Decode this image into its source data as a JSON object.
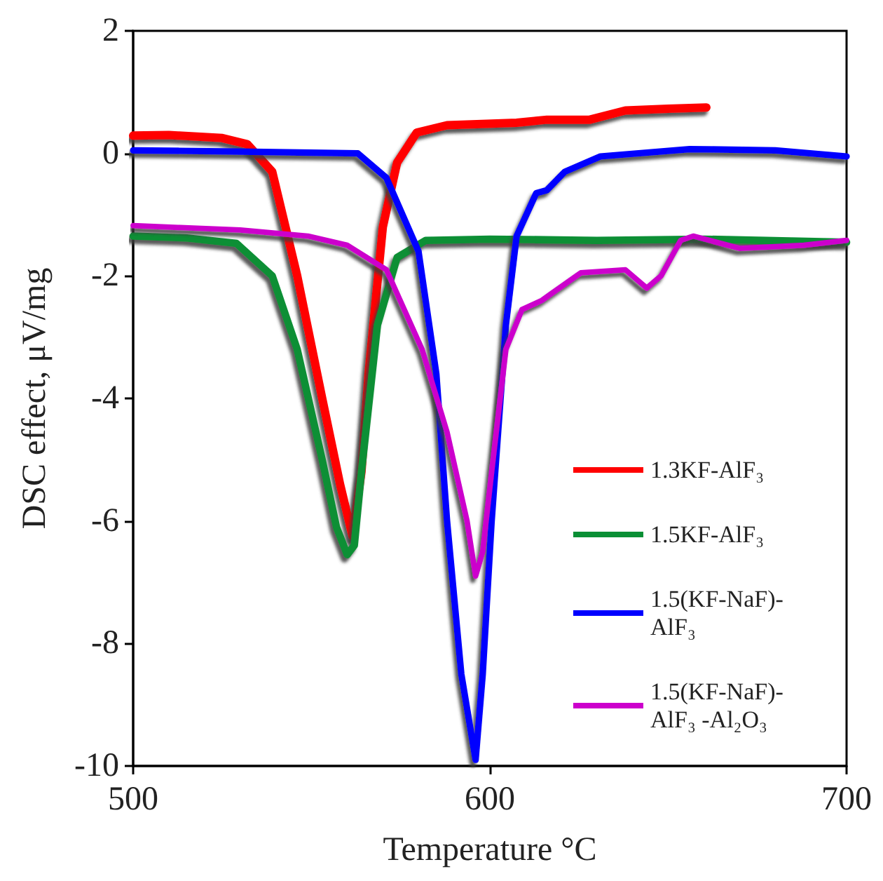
{
  "chart_data": {
    "type": "line",
    "xlabel": "Temperature °C",
    "ylabel": "DSC effect, μV/mg",
    "xlim": [
      500,
      700
    ],
    "xticks": [
      500,
      600,
      700
    ],
    "ylim": [
      -10,
      2
    ],
    "yticks": [
      -10,
      -8,
      -6,
      -4,
      -2,
      0,
      2
    ],
    "grid": false,
    "legend": "bottom right",
    "marker": "none",
    "line_style": "solid",
    "series": [
      {
        "name": "1.3KF-AlF₃",
        "color": "#ff0000",
        "x": [
          500,
          510,
          525,
          532,
          539,
          546,
          553,
          558,
          561.5,
          564,
          566,
          570,
          574,
          579.5,
          588,
          607.5,
          616,
          628,
          638,
          650,
          660.7
        ],
        "values": [
          0.29,
          0.3,
          0.25,
          0.15,
          -0.3,
          -2,
          -4,
          -5.4,
          -6.25,
          -5.2,
          -3.6,
          -1.2,
          -0.15,
          0.34,
          0.46,
          0.5,
          0.55,
          0.55,
          0.7,
          0.73,
          0.75
        ]
      },
      {
        "name": "1.5KF-AlF₃",
        "color": "#0a8f35",
        "x": [
          500,
          515,
          529,
          539,
          546,
          553,
          557,
          560,
          562,
          564,
          568.5,
          574,
          582,
          600,
          630,
          660,
          700
        ],
        "values": [
          -1.35,
          -1.38,
          -1.47,
          -2,
          -3.2,
          -5,
          -6.1,
          -6.55,
          -6.4,
          -5.2,
          -2.8,
          -1.7,
          -1.42,
          -1.4,
          -1.42,
          -1.4,
          -1.45
        ]
      },
      {
        "name": "1.5(KF-NaF)- AlF₃",
        "color": "#0000ff",
        "x": [
          500,
          530,
          563,
          571,
          580,
          585,
          588,
          592,
          596,
          598,
          600.5,
          604.5,
          607.5,
          613,
          616,
          621,
          631,
          656,
          680,
          700
        ],
        "values": [
          0.05,
          0.03,
          0,
          -0.4,
          -1.6,
          -3.6,
          -6,
          -8.5,
          -9.9,
          -8.5,
          -6,
          -2.8,
          -1.35,
          -0.65,
          -0.6,
          -0.3,
          -0.05,
          0.07,
          0.05,
          -0.05
        ]
      },
      {
        "name": "1.5(KF-NaF)- AlF₃ -Al₂O₃",
        "color": "#cc00cc",
        "x": [
          500,
          530,
          549,
          560,
          571,
          581,
          588,
          593.6,
          596,
          598,
          600.5,
          604.5,
          609,
          614.6,
          617,
          625.5,
          638,
          644,
          648,
          653.5,
          657,
          670,
          688,
          700
        ],
        "values": [
          -1.18,
          -1.25,
          -1.35,
          -1.5,
          -1.9,
          -3.2,
          -4.55,
          -6,
          -6.9,
          -6.5,
          -5.2,
          -3.2,
          -2.55,
          -2.4,
          -2.3,
          -1.95,
          -1.9,
          -2.2,
          -2,
          -1.42,
          -1.35,
          -1.55,
          -1.5,
          -1.42
        ]
      }
    ]
  }
}
